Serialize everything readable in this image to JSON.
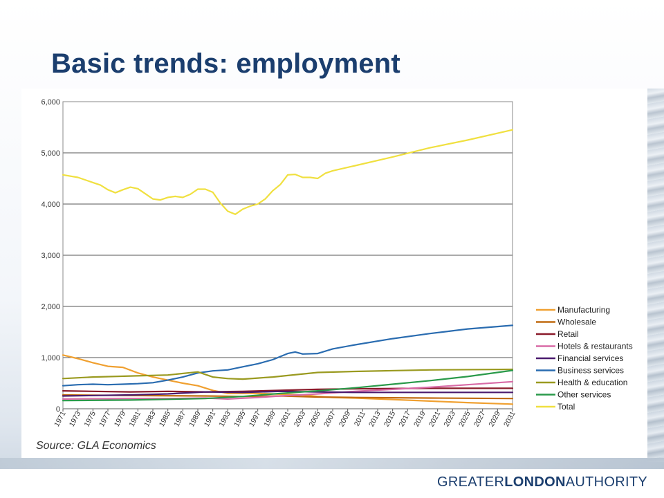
{
  "slide": {
    "title": "Basic trends: employment",
    "source": "Source: GLA Economics",
    "logo": {
      "part1": "GREATER",
      "part2": "LONDON",
      "part3": "AUTHORITY"
    }
  },
  "chart_data": {
    "type": "line",
    "title": "",
    "xlabel": "",
    "ylabel": "",
    "ylim": [
      0,
      6000
    ],
    "xlim": [
      1971,
      2031
    ],
    "yticks": [
      0,
      1000,
      2000,
      3000,
      4000,
      5000,
      6000
    ],
    "ytick_labels": [
      "0",
      "1,000",
      "2,000",
      "3,000",
      "4,000",
      "5,000",
      "6,000"
    ],
    "xticks": [
      1971,
      1973,
      1975,
      1977,
      1979,
      1981,
      1983,
      1985,
      1987,
      1989,
      1991,
      1993,
      1995,
      1997,
      1999,
      2001,
      2003,
      2005,
      2007,
      2009,
      2011,
      2013,
      2015,
      2017,
      2019,
      2021,
      2023,
      2025,
      2027,
      2029,
      2031
    ],
    "grid": "horizontal",
    "legend_position": "right",
    "series": [
      {
        "name": "Manufacturing",
        "color": "#f0a030",
        "x": [
          1971,
          1973,
          1975,
          1977,
          1979,
          1981,
          1983,
          1985,
          1987,
          1989,
          1991,
          1993,
          1995,
          1997,
          1999,
          2001,
          2003,
          2005,
          2007,
          2010,
          2015,
          2020,
          2025,
          2031
        ],
        "y": [
          1050,
          980,
          900,
          830,
          810,
          700,
          620,
          560,
          500,
          450,
          360,
          300,
          300,
          300,
          290,
          280,
          270,
          240,
          220,
          210,
          180,
          150,
          120,
          90
        ]
      },
      {
        "name": "Wholesale",
        "color": "#c06a10",
        "x": [
          1971,
          1980,
          1990,
          1995,
          2000,
          2005,
          2010,
          2020,
          2031
        ],
        "y": [
          270,
          260,
          250,
          240,
          250,
          230,
          220,
          210,
          200
        ]
      },
      {
        "name": "Retail",
        "color": "#8a1a2a",
        "x": [
          1971,
          1975,
          1980,
          1985,
          1990,
          1995,
          2000,
          2005,
          2010,
          2020,
          2031
        ],
        "y": [
          350,
          340,
          330,
          340,
          330,
          340,
          360,
          380,
          390,
          400,
          400
        ]
      },
      {
        "name": "Hotels & restaurants",
        "color": "#d86aa6",
        "x": [
          1971,
          1980,
          1985,
          1990,
          1993,
          1997,
          2000,
          2005,
          2010,
          2015,
          2020,
          2025,
          2031
        ],
        "y": [
          190,
          200,
          200,
          210,
          190,
          220,
          250,
          290,
          340,
          380,
          420,
          470,
          530
        ]
      },
      {
        "name": "Financial services",
        "color": "#4a1a6e",
        "x": [
          1971,
          1980,
          1985,
          1990,
          1995,
          2000,
          2005,
          2010,
          2020,
          2031
        ],
        "y": [
          250,
          270,
          290,
          330,
          320,
          340,
          330,
          320,
          320,
          320
        ]
      },
      {
        "name": "Business services",
        "color": "#2a6cb0",
        "x": [
          1971,
          1973,
          1975,
          1977,
          1979,
          1981,
          1983,
          1985,
          1987,
          1989,
          1991,
          1993,
          1995,
          1997,
          1999,
          2001,
          2002,
          2003,
          2005,
          2007,
          2010,
          2015,
          2020,
          2025,
          2031
        ],
        "y": [
          450,
          470,
          480,
          470,
          480,
          490,
          510,
          560,
          620,
          700,
          740,
          760,
          820,
          880,
          960,
          1080,
          1110,
          1070,
          1080,
          1170,
          1250,
          1370,
          1470,
          1560,
          1630
        ]
      },
      {
        "name": "Health & education",
        "color": "#9a9a20",
        "x": [
          1971,
          1975,
          1980,
          1985,
          1989,
          1991,
          1993,
          1995,
          1997,
          1999,
          2001,
          2005,
          2010,
          2020,
          2031
        ],
        "y": [
          590,
          620,
          640,
          660,
          720,
          620,
          590,
          580,
          600,
          620,
          650,
          710,
          730,
          760,
          770
        ]
      },
      {
        "name": "Other services",
        "color": "#2a9a4a",
        "x": [
          1971,
          1980,
          1990,
          1995,
          2000,
          2005,
          2010,
          2015,
          2020,
          2025,
          2031
        ],
        "y": [
          160,
          170,
          200,
          240,
          300,
          350,
          410,
          480,
          550,
          630,
          750
        ]
      },
      {
        "name": "Total",
        "color": "#f0e040",
        "x": [
          1971,
          1973,
          1975,
          1976,
          1977,
          1978,
          1979,
          1980,
          1981,
          1982,
          1983,
          1984,
          1985,
          1986,
          1987,
          1988,
          1989,
          1990,
          1991,
          1992,
          1993,
          1994,
          1995,
          1996,
          1997,
          1998,
          1999,
          2000,
          2001,
          2002,
          2003,
          2004,
          2005,
          2006,
          2007,
          2010,
          2015,
          2020,
          2025,
          2031
        ],
        "y": [
          4570,
          4520,
          4420,
          4370,
          4280,
          4220,
          4280,
          4330,
          4300,
          4200,
          4100,
          4080,
          4130,
          4150,
          4130,
          4190,
          4290,
          4290,
          4230,
          4020,
          3860,
          3800,
          3900,
          3960,
          4000,
          4100,
          4260,
          4380,
          4570,
          4580,
          4520,
          4520,
          4500,
          4600,
          4650,
          4750,
          4920,
          5100,
          5250,
          5450
        ]
      }
    ]
  }
}
